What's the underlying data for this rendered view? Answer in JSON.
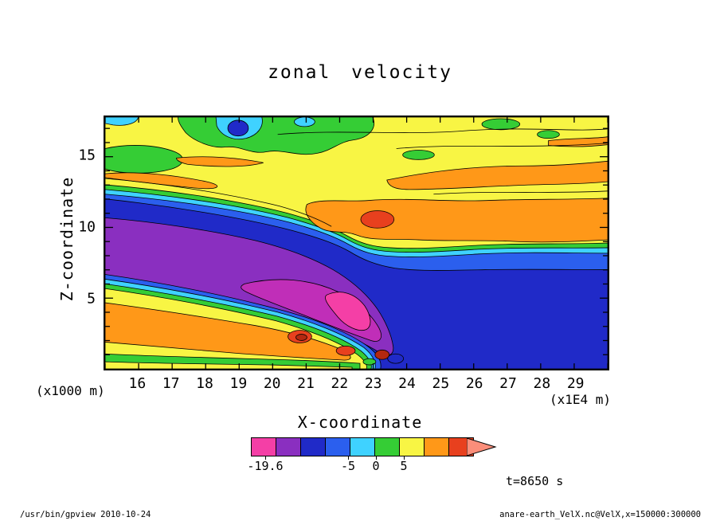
{
  "title": "zonal velocity",
  "time_label": "t=8650 s",
  "footer": {
    "left": "/usr/bin/gpview  2010-10-24",
    "right": "anare-earth_VelX.nc@VelX,x=150000:300000"
  },
  "chart_data": {
    "type": "heatmap",
    "subtype": "filled-contour",
    "title": "zonal velocity",
    "xlabel": "X-coordinate",
    "x_unit_label": "(x1E4 m)",
    "x_range": [
      15,
      30
    ],
    "x_ticks": [
      16,
      17,
      18,
      19,
      20,
      21,
      22,
      23,
      24,
      25,
      26,
      27,
      28,
      29
    ],
    "ylabel": "Z-coordinate",
    "y_unit_label": "(x1000 m)",
    "y_range": [
      0,
      17.8
    ],
    "y_ticks": [
      5,
      10,
      15
    ],
    "colorbar": {
      "labels": [
        "-19.6",
        "-5",
        "0",
        "5"
      ],
      "colors": [
        "#F43FA6",
        "#8A2FC0",
        "#202AC8",
        "#2B5FEE",
        "#3FD2FF",
        "#35CD35",
        "#F8F544",
        "#FF9818",
        "#E8401E"
      ],
      "arrow_color": "#FB8E7A",
      "min_value": -19.6,
      "labeled_levels": [
        -5,
        0,
        5
      ]
    },
    "palette": {
      "pink": "#F43FA6",
      "magenta": "#C02EB8",
      "purple": "#8A2FC0",
      "navy": "#202AC8",
      "blue": "#2B5FEE",
      "cyan": "#3FD2FF",
      "green": "#35CD35",
      "yellow": "#F8F544",
      "orange": "#FF9818",
      "red": "#E8401E",
      "dark_red": "#B42810"
    },
    "field_summary": {
      "variable": "zonal velocity",
      "min_value": -19.6,
      "regions": [
        {
          "where": "upper layer z=12-17.8",
          "value": "positive (yellow ~0-5) with green/cyan/blue negative patches near top around x=17-21 and wavy orange bands ~5-10"
        },
        {
          "where": "mid-right band x=21-30, z=9-12",
          "value": "positive ~5-10 (orange) with red maximum near x=23, z=10"
        },
        {
          "where": "diagonal jet from x=15, z=7-11 descending to x=24, z=1",
          "value": "strongly negative core (purple/magenta/pink), minimum -19.6"
        },
        {
          "where": "lower-left pocket x=15-23, z=0-5",
          "value": "positive ~0-10 (yellow/orange) with red spots near x=20.8, z=2.3"
        },
        {
          "where": "lower-right x=24-30, z=0-7",
          "value": "negative ~-5 to -15 (blue/navy)"
        },
        {
          "where": "front near x=22-24",
          "value": "sharp gradient, contour lines crowded, small extrema at bottom"
        }
      ]
    }
  }
}
